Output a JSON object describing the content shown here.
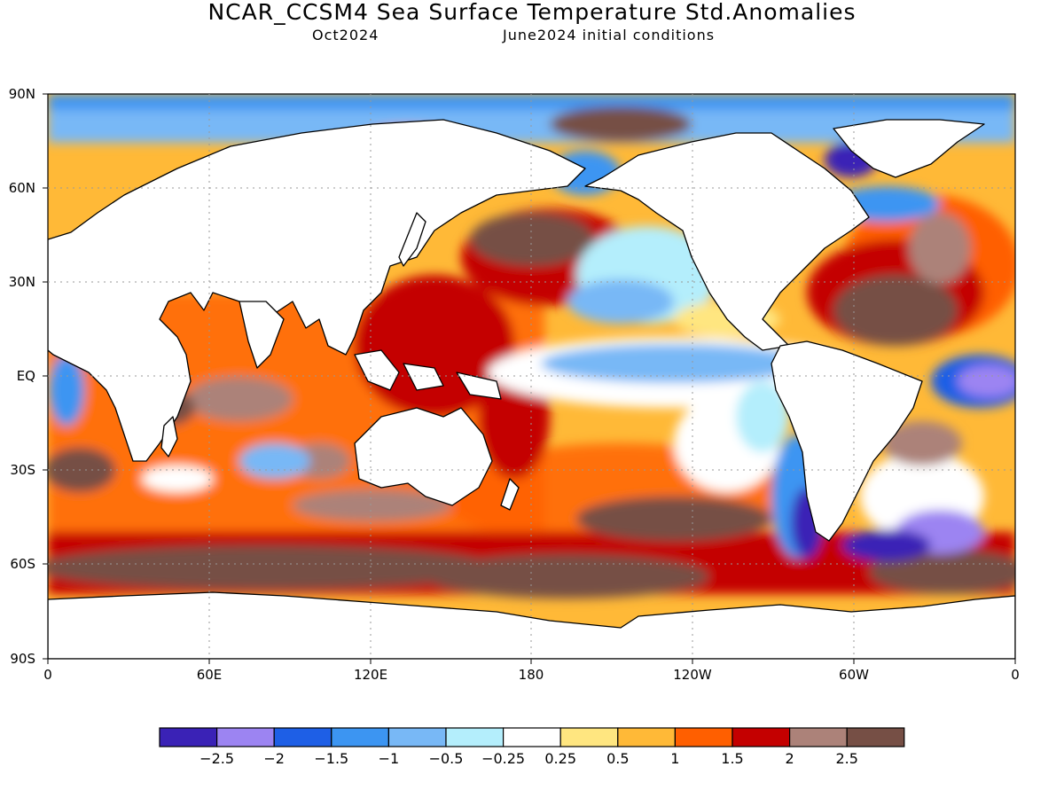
{
  "title": "NCAR_CCSM4 Sea Surface Temperature Std.Anomalies",
  "subtitle_left": "Oct2024",
  "subtitle_right": "June2024 initial conditions",
  "lat_labels": [
    "90N",
    "60N",
    "30N",
    "EQ",
    "30S",
    "60S",
    "90S"
  ],
  "lon_labels": [
    "0",
    "60E",
    "120E",
    "180",
    "120W",
    "60W",
    "0"
  ],
  "colorbar": {
    "colors": [
      "#3a22b6",
      "#9c84f2",
      "#1e5fe6",
      "#3c95f2",
      "#78b8f6",
      "#b4eefc",
      "#ffffff",
      "#ffe680",
      "#ffb937",
      "#ff5f00",
      "#c40000",
      "#ac8279",
      "#764f45"
    ],
    "labels": [
      "−2.5",
      "−2",
      "−1.5",
      "−1",
      "−0.5",
      "−0.25",
      "0.25",
      "0.5",
      "1",
      "1.5",
      "2",
      "2.5"
    ]
  }
}
